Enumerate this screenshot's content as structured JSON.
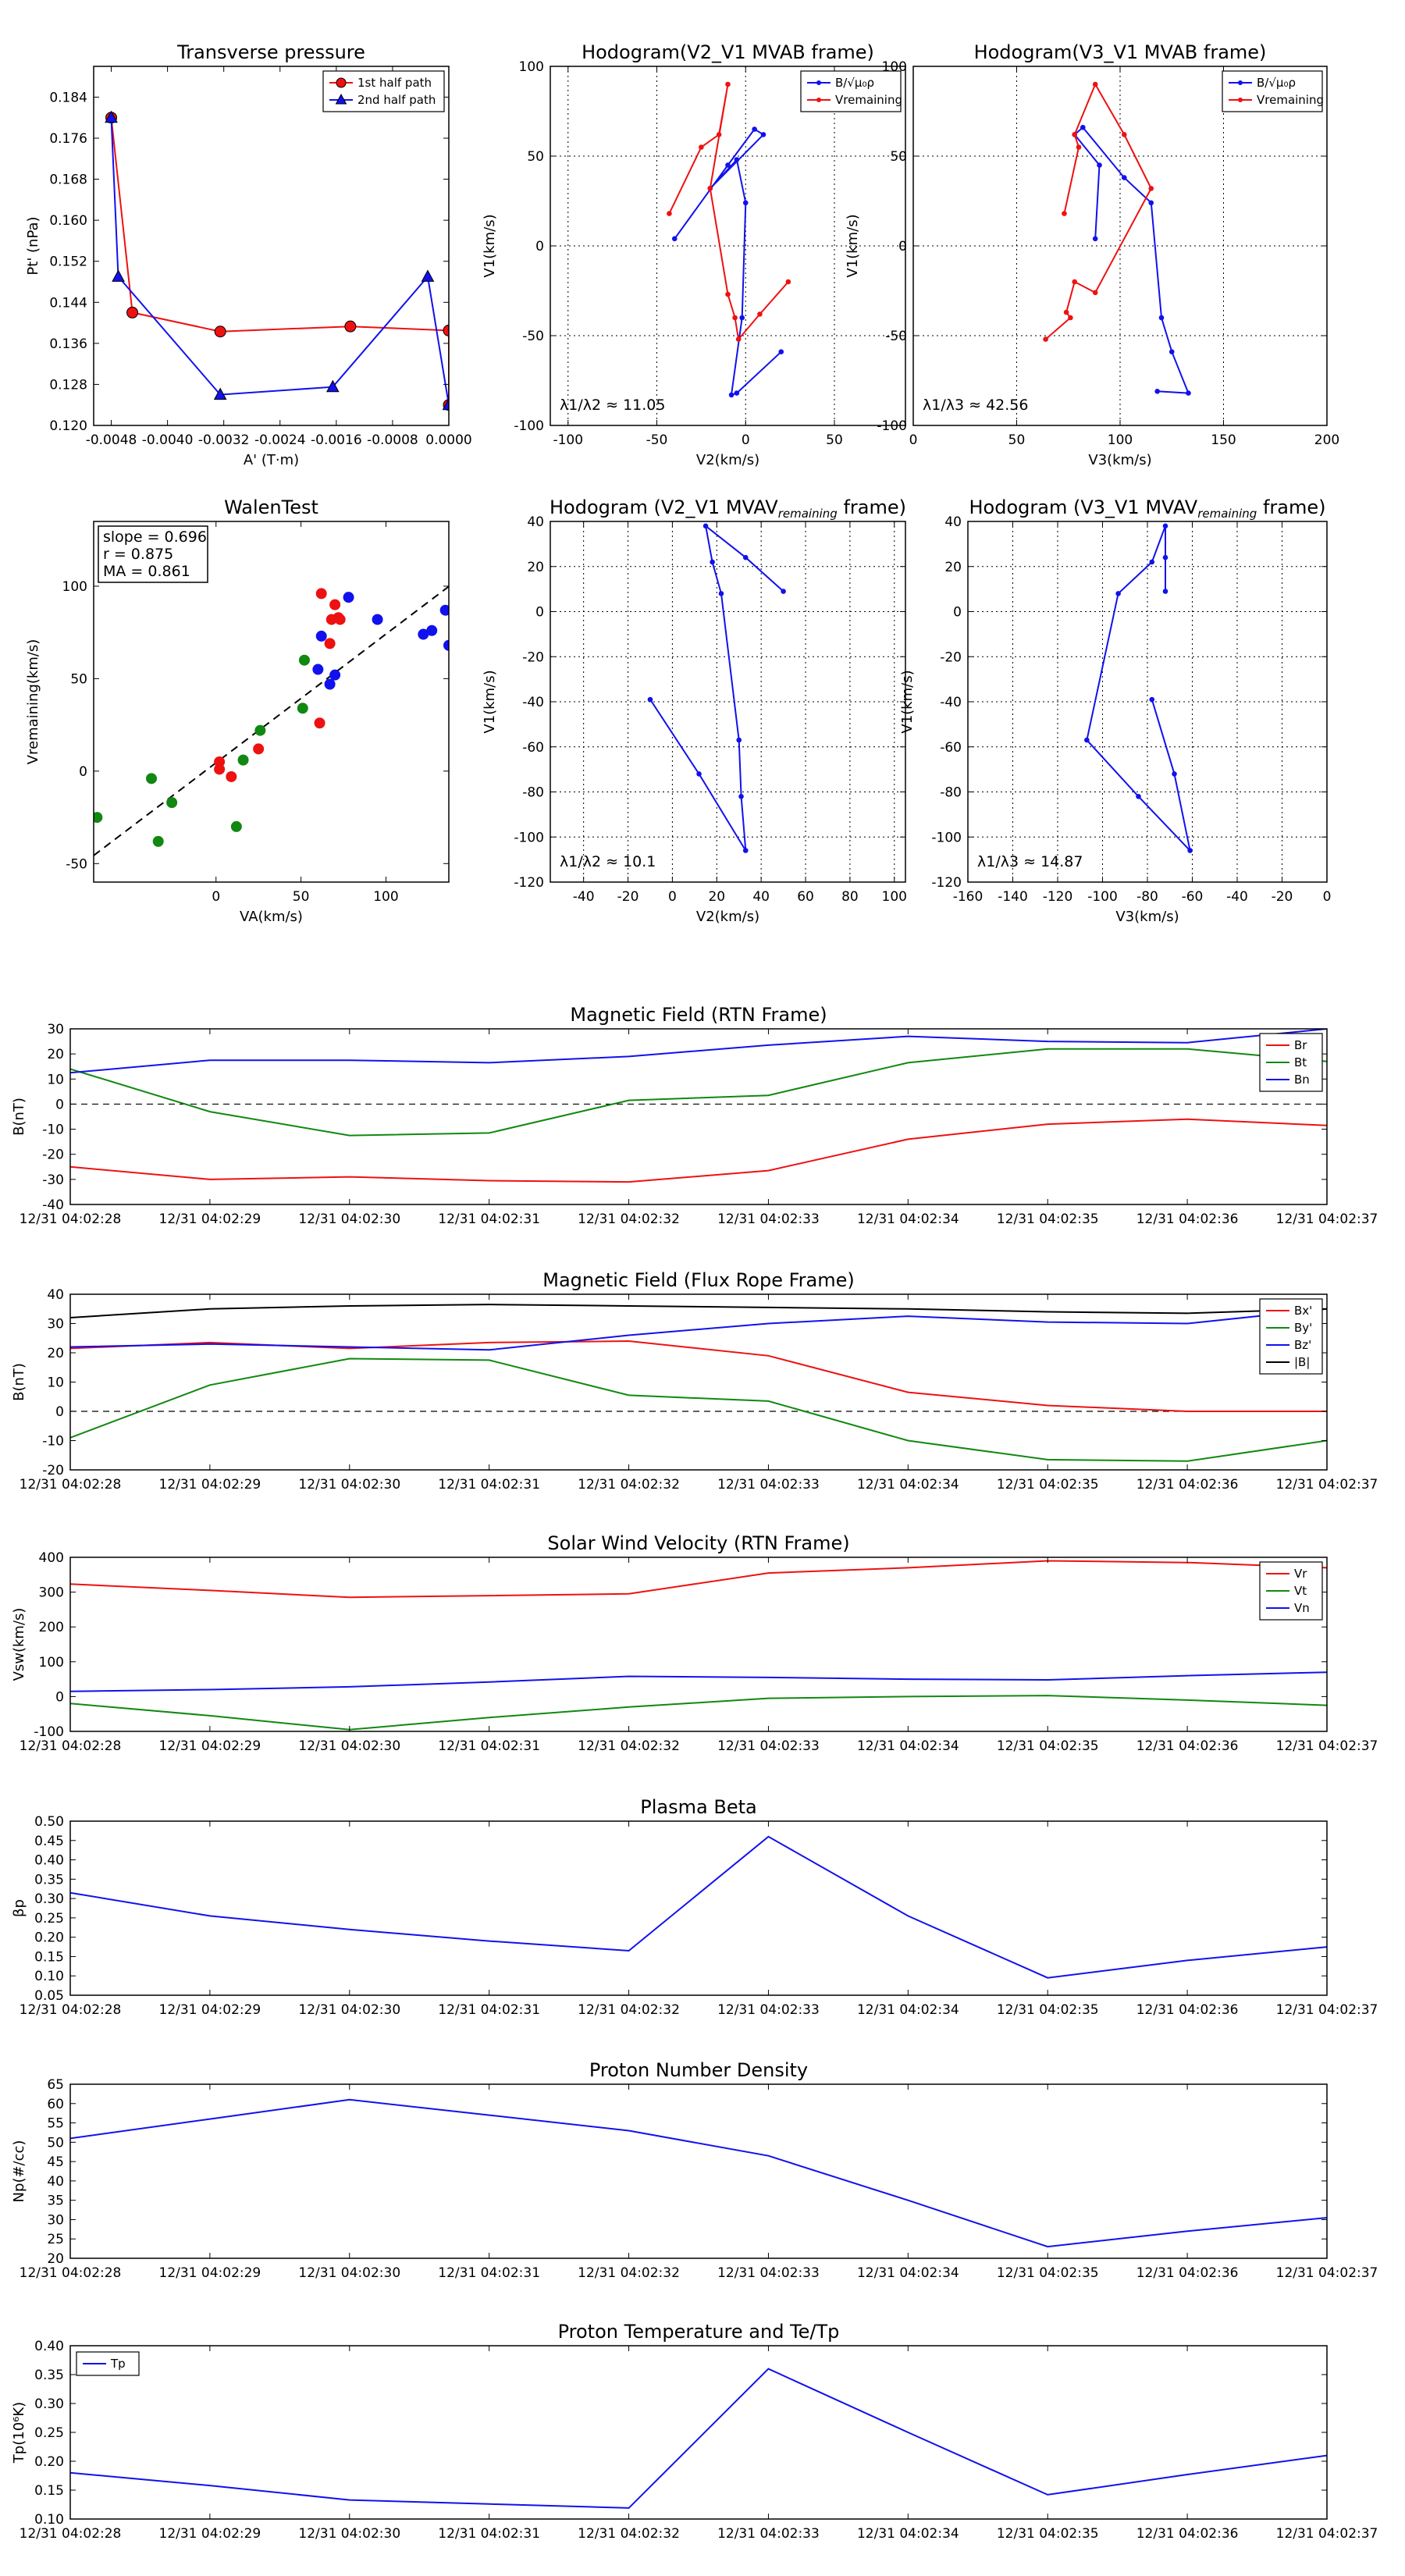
{
  "colors": {
    "red": "#ee1111",
    "green": "#118811",
    "blue": "#1111ee",
    "black": "#000000"
  },
  "chart_data": [
    {
      "id": "tp",
      "type": "line",
      "title": "Transverse pressure",
      "xlabel": "A' (T·m)",
      "ylabel": "Pt' (nPa)",
      "xlim": [
        -0.00505,
        0.0
      ],
      "ylim": [
        0.12,
        0.19
      ],
      "xticks": [
        "-0.0048",
        "-0.0040",
        "-0.0032",
        "-0.0024",
        "-0.0016",
        "-0.0008",
        "0.0000"
      ],
      "xtick_vals": [
        -0.0048,
        -0.004,
        -0.0032,
        -0.0024,
        -0.0016,
        -0.0008,
        0.0
      ],
      "yticks": [
        "0.120",
        "0.128",
        "0.136",
        "0.144",
        "0.152",
        "0.160",
        "0.168",
        "0.176",
        "0.184"
      ],
      "ytick_vals": [
        0.12,
        0.128,
        0.136,
        0.144,
        0.152,
        0.16,
        0.168,
        0.176,
        0.184
      ],
      "legend": [
        "1st half path",
        "2nd half path"
      ],
      "series": [
        {
          "name": "1st half path",
          "color": "red",
          "marker": "circle",
          "x": [
            -0.0048,
            -0.0045,
            -0.00325,
            -0.0014,
            0.0,
            0.0
          ],
          "y": [
            0.18,
            0.142,
            0.1383,
            0.1393,
            0.1385,
            0.124
          ]
        },
        {
          "name": "2nd half path",
          "color": "blue",
          "marker": "triangle",
          "x": [
            -0.0048,
            -0.0047,
            -0.00325,
            -0.00165,
            -0.0003,
            0.0
          ],
          "y": [
            0.18,
            0.149,
            0.126,
            0.1275,
            0.149,
            0.124
          ]
        }
      ]
    },
    {
      "id": "h1",
      "type": "line",
      "title": "Hodogram(V2_V1 MVAB frame)",
      "xlabel": "V2(km/s)",
      "ylabel": "V1(km/s)",
      "xlim": [
        -110,
        90
      ],
      "ylim": [
        -100,
        100
      ],
      "xticks": [
        "-100",
        "-50",
        "0",
        "50"
      ],
      "xtick_vals": [
        -100,
        -50,
        0,
        50
      ],
      "yticks": [
        "-100",
        "-50",
        "0",
        "50",
        "100"
      ],
      "ytick_vals": [
        -100,
        -50,
        0,
        50,
        100
      ],
      "grid": true,
      "legend": [
        "B/√μ₀ρ",
        "Vremaining"
      ],
      "annotation": "λ1/λ2 ≈ 11.05",
      "series": [
        {
          "name": "B/√μ₀ρ",
          "color": "blue",
          "marker": "dot",
          "x": [
            -40,
            -10,
            5,
            10,
            -20,
            -5,
            0,
            -2,
            -8,
            -5,
            20
          ],
          "y": [
            4,
            45,
            65,
            62,
            32,
            48,
            24,
            -40,
            -83,
            -82,
            -59
          ]
        },
        {
          "name": "Vremaining",
          "color": "red",
          "marker": "dot",
          "x": [
            -43,
            -25,
            -15,
            -10,
            -20,
            -10,
            -6,
            -4,
            8,
            24
          ],
          "y": [
            18,
            55,
            62,
            90,
            32,
            -27,
            -40,
            -52,
            -38,
            -20
          ]
        }
      ]
    },
    {
      "id": "h2",
      "type": "line",
      "title": "Hodogram(V3_V1 MVAB frame)",
      "xlabel": "V3(km/s)",
      "ylabel": "V1(km/s)",
      "xlim": [
        0,
        200
      ],
      "ylim": [
        -100,
        100
      ],
      "xticks": [
        "0",
        "50",
        "100",
        "150",
        "200"
      ],
      "xtick_vals": [
        0,
        50,
        100,
        150,
        200
      ],
      "yticks": [
        "-100",
        "-50",
        "0",
        "50",
        "100"
      ],
      "ytick_vals": [
        -100,
        -50,
        0,
        50,
        100
      ],
      "grid": true,
      "legend": [
        "B/√μ₀ρ",
        "Vremaining"
      ],
      "annotation": "λ1/λ3 ≈ 42.56",
      "series": [
        {
          "name": "B/√μ₀ρ",
          "color": "blue",
          "marker": "dot",
          "x": [
            88,
            90,
            78,
            82,
            102,
            115,
            120,
            125,
            133,
            118
          ],
          "y": [
            4,
            45,
            62,
            66,
            38,
            24,
            -40,
            -59,
            -82,
            -81
          ]
        },
        {
          "name": "Vremaining",
          "color": "red",
          "marker": "dot",
          "x": [
            73,
            80,
            78,
            88,
            102,
            115,
            88,
            78,
            74,
            76,
            64
          ],
          "y": [
            18,
            55,
            62,
            90,
            62,
            32,
            -26,
            -20,
            -37,
            -40,
            -52
          ]
        }
      ]
    },
    {
      "id": "walen",
      "type": "scatter",
      "title": "WalenTest",
      "xlabel": "VA(km/s)",
      "ylabel": "Vremaining(km/s)",
      "xlim": [
        -72,
        137
      ],
      "ylim": [
        -60,
        135
      ],
      "xticks": [
        "0",
        "50",
        "100"
      ],
      "xtick_vals": [
        0,
        50,
        100
      ],
      "yticks": [
        "-50",
        "0",
        "50",
        "100"
      ],
      "ytick_vals": [
        -50,
        0,
        50,
        100
      ],
      "box_lines": [
        "slope = 0.696",
        "r = 0.875",
        "MA = 0.861"
      ],
      "fit": {
        "slope": 0.696,
        "intercept": 4.5
      },
      "series": [
        {
          "name": "red",
          "color": "red",
          "x": [
            62,
            70,
            72,
            68,
            67,
            73,
            61,
            25,
            2,
            9,
            2
          ],
          "y": [
            96,
            90,
            83,
            82,
            69,
            82,
            26,
            12,
            5,
            -3,
            1
          ]
        },
        {
          "name": "green",
          "color": "green",
          "x": [
            -70,
            -38,
            -34,
            -26,
            12,
            16,
            26,
            51,
            52
          ],
          "y": [
            -25,
            -4,
            -38,
            -17,
            -30,
            6,
            22,
            34,
            60
          ]
        },
        {
          "name": "blue",
          "color": "blue",
          "x": [
            60,
            62,
            67,
            70,
            78,
            95,
            122,
            127,
            135,
            137
          ],
          "y": [
            55,
            73,
            47,
            52,
            94,
            82,
            74,
            76,
            87,
            68
          ]
        }
      ]
    },
    {
      "id": "h3",
      "type": "line",
      "title": "Hodogram (V2_V1 MVAV$_{remaining}$ frame)",
      "xlabel": "V2(km/s)",
      "ylabel": "V1(km/s)",
      "xlim": [
        -55,
        105
      ],
      "ylim": [
        -120,
        40
      ],
      "xticks": [
        "-40",
        "-20",
        "0",
        "20",
        "40",
        "60",
        "80",
        "100"
      ],
      "xtick_vals": [
        -40,
        -20,
        0,
        20,
        40,
        60,
        80,
        100
      ],
      "yticks": [
        "-120",
        "-100",
        "-80",
        "-60",
        "-40",
        "-20",
        "0",
        "20",
        "40"
      ],
      "ytick_vals": [
        -120,
        -100,
        -80,
        -60,
        -40,
        -20,
        0,
        20,
        40
      ],
      "grid": true,
      "annotation": "λ1/λ2 ≈ 10.1",
      "series": [
        {
          "name": "path",
          "color": "blue",
          "marker": "dot",
          "x": [
            50,
            33,
            15,
            18,
            22,
            30,
            31,
            33,
            12,
            -10
          ],
          "y": [
            9,
            24,
            38,
            22,
            8,
            -57,
            -82,
            -106,
            -72,
            -39
          ]
        }
      ]
    },
    {
      "id": "h4",
      "type": "line",
      "title": "Hodogram (V3_V1 MVAV$_{remaining}$ frame)",
      "xlabel": "V3(km/s)",
      "ylabel": "V1(km/s)",
      "xlim": [
        -160,
        0
      ],
      "ylim": [
        -120,
        40
      ],
      "xticks": [
        "-160",
        "-140",
        "-120",
        "-100",
        "-80",
        "-60",
        "-40",
        "-20",
        "0"
      ],
      "xtick_vals": [
        -160,
        -140,
        -120,
        -100,
        -80,
        -60,
        -40,
        -20,
        0
      ],
      "yticks": [
        "-120",
        "-100",
        "-80",
        "-60",
        "-40",
        "-20",
        "0",
        "20",
        "40"
      ],
      "ytick_vals": [
        -120,
        -100,
        -80,
        -60,
        -40,
        -20,
        0,
        20,
        40
      ],
      "grid": true,
      "annotation": "λ1/λ3 ≈ 14.87",
      "series": [
        {
          "name": "path",
          "color": "blue",
          "marker": "dot",
          "x": [
            -72,
            -72,
            -72,
            -78,
            -93,
            -107,
            -84,
            -61,
            -68,
            -78
          ],
          "y": [
            9,
            24,
            38,
            22,
            8,
            -57,
            -82,
            -106,
            -72,
            -39
          ]
        }
      ]
    },
    {
      "id": "mag_rtn",
      "type": "line",
      "title": "Magnetic Field (RTN Frame)",
      "ylabel": "B(nT)",
      "ylim": [
        -40,
        30
      ],
      "yticks": [
        "-40",
        "-30",
        "-20",
        "-10",
        "0",
        "10",
        "20",
        "30"
      ],
      "ytick_vals": [
        -40,
        -30,
        -20,
        -10,
        0,
        10,
        20,
        30
      ],
      "zero_line": true,
      "categories": [
        "12/31 04:02:28",
        "12/31 04:02:29",
        "12/31 04:02:30",
        "12/31 04:02:31",
        "12/31 04:02:32",
        "12/31 04:02:33",
        "12/31 04:02:34",
        "12/31 04:02:35",
        "12/31 04:02:36",
        "12/31 04:02:37"
      ],
      "series": [
        {
          "name": "Br",
          "color": "red",
          "values": [
            -25,
            -30,
            -29,
            -30.5,
            -31,
            -26.5,
            -14,
            -8,
            -6,
            -8.5
          ]
        },
        {
          "name": "Bt",
          "color": "green",
          "values": [
            14,
            -3,
            -12.5,
            -11.5,
            1.5,
            3.5,
            16.5,
            22,
            22,
            17
          ]
        },
        {
          "name": "Bn",
          "color": "blue",
          "values": [
            12.5,
            17.5,
            17.5,
            16.5,
            19,
            23.5,
            27,
            25,
            24.5,
            30
          ]
        }
      ]
    },
    {
      "id": "mag_fr",
      "type": "line",
      "title": "Magnetic Field (Flux Rope Frame)",
      "ylabel": "B(nT)",
      "ylim": [
        -20,
        40
      ],
      "yticks": [
        "-20",
        "-10",
        "0",
        "10",
        "20",
        "30",
        "40"
      ],
      "ytick_vals": [
        -20,
        -10,
        0,
        10,
        20,
        30,
        40
      ],
      "zero_line": true,
      "categories": [
        "12/31 04:02:28",
        "12/31 04:02:29",
        "12/31 04:02:30",
        "12/31 04:02:31",
        "12/31 04:02:32",
        "12/31 04:02:33",
        "12/31 04:02:34",
        "12/31 04:02:35",
        "12/31 04:02:36",
        "12/31 04:02:37"
      ],
      "series": [
        {
          "name": "Bx'",
          "color": "red",
          "values": [
            21.5,
            23.5,
            21.5,
            23.5,
            24,
            19,
            6.5,
            2,
            0,
            0
          ]
        },
        {
          "name": "By'",
          "color": "green",
          "values": [
            -9,
            9,
            18,
            17.5,
            5.5,
            3.5,
            -10,
            -16.5,
            -17,
            -10
          ]
        },
        {
          "name": "Bz'",
          "color": "blue",
          "values": [
            22,
            23,
            22,
            21,
            26,
            30,
            32.5,
            30.5,
            30,
            35
          ]
        },
        {
          "name": "|B|",
          "color": "black",
          "values": [
            32,
            35,
            36,
            36.5,
            36,
            35.5,
            35,
            34,
            33.5,
            35
          ]
        }
      ]
    },
    {
      "id": "vel",
      "type": "line",
      "title": "Solar Wind Velocity (RTN Frame)",
      "ylabel": "Vsw(km/s)",
      "ylim": [
        -100,
        400
      ],
      "yticks": [
        "-100",
        "0",
        "100",
        "200",
        "300",
        "400"
      ],
      "ytick_vals": [
        -100,
        0,
        100,
        200,
        300,
        400
      ],
      "zero_line": false,
      "categories": [
        "12/31 04:02:28",
        "12/31 04:02:29",
        "12/31 04:02:30",
        "12/31 04:02:31",
        "12/31 04:02:32",
        "12/31 04:02:33",
        "12/31 04:02:34",
        "12/31 04:02:35",
        "12/31 04:02:36",
        "12/31 04:02:37"
      ],
      "series": [
        {
          "name": "Vr",
          "color": "red",
          "values": [
            323,
            305,
            285,
            290,
            295,
            355,
            370,
            390,
            385,
            370
          ]
        },
        {
          "name": "Vt",
          "color": "green",
          "values": [
            -20,
            -55,
            -95,
            -60,
            -30,
            -5,
            0,
            3,
            -10,
            -25
          ]
        },
        {
          "name": "Vn",
          "color": "blue",
          "values": [
            15,
            20,
            28,
            42,
            58,
            55,
            50,
            48,
            60,
            70
          ]
        }
      ]
    },
    {
      "id": "beta",
      "type": "line",
      "title": "Plasma Beta",
      "ylabel": "βp",
      "ylim": [
        0.05,
        0.5
      ],
      "yticks": [
        "0.05",
        "0.10",
        "0.15",
        "0.20",
        "0.25",
        "0.30",
        "0.35",
        "0.40",
        "0.45",
        "0.50"
      ],
      "ytick_vals": [
        0.05,
        0.1,
        0.15,
        0.2,
        0.25,
        0.3,
        0.35,
        0.4,
        0.45,
        0.5
      ],
      "categories": [
        "12/31 04:02:28",
        "12/31 04:02:29",
        "12/31 04:02:30",
        "12/31 04:02:31",
        "12/31 04:02:32",
        "12/31 04:02:33",
        "12/31 04:02:34",
        "12/31 04:02:35",
        "12/31 04:02:36",
        "12/31 04:02:37"
      ],
      "series": [
        {
          "name": "beta",
          "color": "blue",
          "values": [
            0.315,
            0.255,
            0.22,
            0.19,
            0.165,
            0.46,
            0.255,
            0.095,
            0.14,
            0.175
          ]
        }
      ]
    },
    {
      "id": "np",
      "type": "line",
      "title": "Proton Number Density",
      "ylabel": "Np(#/cc)",
      "ylim": [
        20,
        65
      ],
      "yticks": [
        "20",
        "25",
        "30",
        "35",
        "40",
        "45",
        "50",
        "55",
        "60",
        "65"
      ],
      "ytick_vals": [
        20,
        25,
        30,
        35,
        40,
        45,
        50,
        55,
        60,
        65
      ],
      "categories": [
        "12/31 04:02:28",
        "12/31 04:02:29",
        "12/31 04:02:30",
        "12/31 04:02:31",
        "12/31 04:02:32",
        "12/31 04:02:33",
        "12/31 04:02:34",
        "12/31 04:02:35",
        "12/31 04:02:36",
        "12/31 04:02:37"
      ],
      "series": [
        {
          "name": "Np",
          "color": "blue",
          "values": [
            51,
            56,
            61,
            57,
            53,
            46.5,
            35,
            23,
            27,
            30.5
          ]
        }
      ]
    },
    {
      "id": "tp_temp",
      "type": "line",
      "title": "Proton Temperature and Te/Tp",
      "ylabel": "Tp(10⁶K)",
      "ylim": [
        0.1,
        0.4
      ],
      "yticks": [
        "0.10",
        "0.15",
        "0.20",
        "0.25",
        "0.30",
        "0.35",
        "0.40"
      ],
      "ytick_vals": [
        0.1,
        0.15,
        0.2,
        0.25,
        0.3,
        0.35,
        0.4
      ],
      "legend_loc": "top-left",
      "categories": [
        "12/31 04:02:28",
        "12/31 04:02:29",
        "12/31 04:02:30",
        "12/31 04:02:31",
        "12/31 04:02:32",
        "12/31 04:02:33",
        "12/31 04:02:34",
        "12/31 04:02:35",
        "12/31 04:02:36",
        "12/31 04:02:37"
      ],
      "series": [
        {
          "name": "Tp",
          "color": "blue",
          "values": [
            0.18,
            0.158,
            0.133,
            0.126,
            0.119,
            0.36,
            0.25,
            0.142,
            0.177,
            0.21
          ]
        }
      ]
    }
  ]
}
